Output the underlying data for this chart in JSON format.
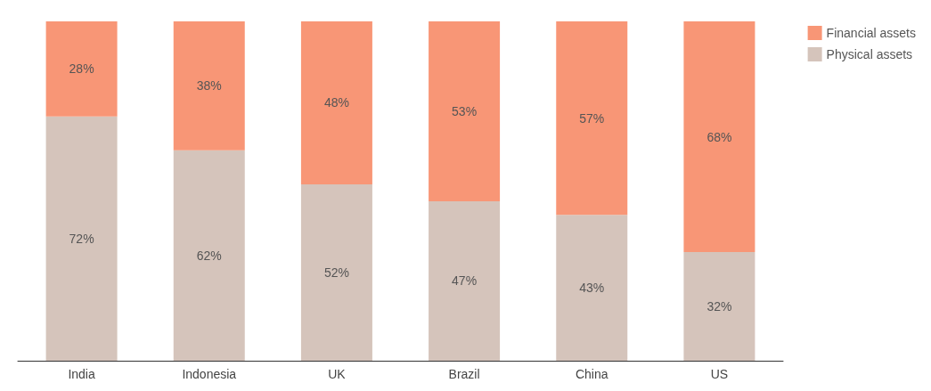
{
  "chart_data": {
    "type": "bar",
    "stacked": true,
    "categories": [
      "India",
      "Indonesia",
      "UK",
      "Brazil",
      "China",
      "US"
    ],
    "series": [
      {
        "name": "Physical assets",
        "color": "#d5c4bb",
        "values": [
          72,
          62,
          52,
          47,
          43,
          32
        ],
        "value_labels": [
          "72%",
          "62%",
          "52%",
          "47%",
          "43%",
          "32%"
        ]
      },
      {
        "name": "Financial assets",
        "color": "#f89676",
        "values": [
          28,
          38,
          48,
          53,
          57,
          68
        ],
        "value_labels": [
          "28%",
          "38%",
          "48%",
          "53%",
          "57%",
          "68%"
        ]
      }
    ],
    "ylim": [
      0,
      100
    ],
    "tick_labels": "x",
    "grid": false,
    "legend": "top right"
  }
}
